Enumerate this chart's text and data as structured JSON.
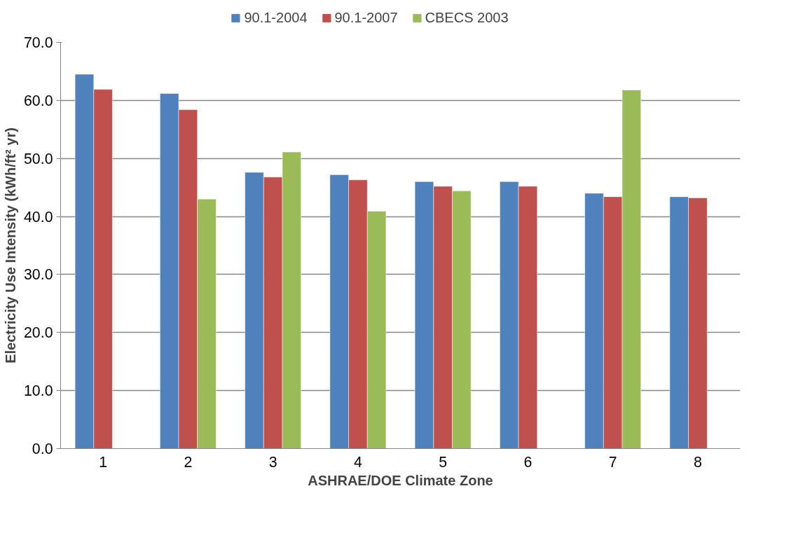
{
  "chart_data": {
    "type": "bar",
    "xlabel": "ASHRAE/DOE Climate Zone",
    "ylabel": "Electricity Use Intensity (kWh/ft² yr)",
    "categories": [
      "1",
      "2",
      "3",
      "4",
      "5",
      "6",
      "7",
      "8"
    ],
    "series": [
      {
        "name": "90.1-2004",
        "color": "#4f81bd",
        "values": [
          64.5,
          61.2,
          47.6,
          47.2,
          46.0,
          46.0,
          44.0,
          43.4
        ]
      },
      {
        "name": "90.1-2007",
        "color": "#c0504d",
        "values": [
          61.9,
          58.4,
          46.8,
          46.3,
          45.2,
          45.2,
          43.4,
          43.2
        ]
      },
      {
        "name": "CBECS 2003",
        "color": "#9bbb59",
        "values": [
          null,
          43.0,
          51.1,
          40.9,
          44.4,
          null,
          61.8,
          null
        ]
      }
    ],
    "ylim": [
      0,
      70
    ],
    "yticks": [
      {
        "value": 0,
        "label": "0.0"
      },
      {
        "value": 10,
        "label": "10.0"
      },
      {
        "value": 20,
        "label": "20.0"
      },
      {
        "value": 30,
        "label": "30.0"
      },
      {
        "value": 40,
        "label": "40.0"
      },
      {
        "value": 50,
        "label": "50.0"
      },
      {
        "value": 60,
        "label": "60.0"
      },
      {
        "value": 70,
        "label": "70.0"
      }
    ],
    "grid": "y",
    "legend": "top"
  }
}
